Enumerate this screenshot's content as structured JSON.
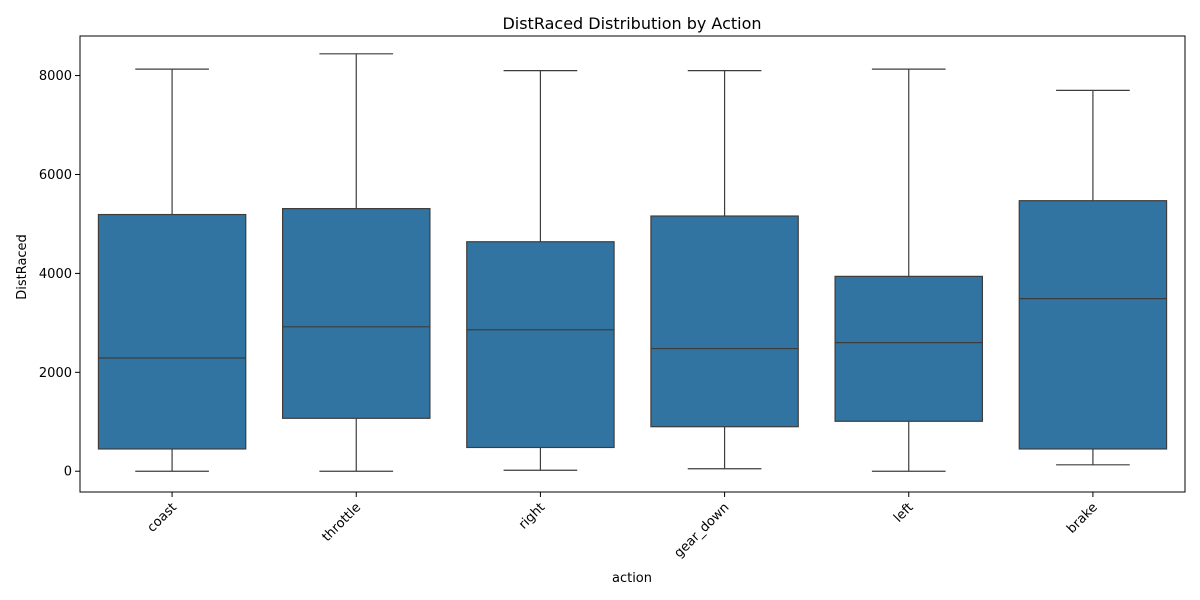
{
  "chart_data": {
    "type": "box",
    "title": "DistRaced Distribution by Action",
    "xlabel": "action",
    "ylabel": "DistRaced",
    "ylim": [
      -420,
      8800
    ],
    "yticks": [
      0,
      2000,
      4000,
      6000,
      8000
    ],
    "grid": false,
    "legend": "none",
    "box_color": "#3274a1",
    "line_color": "#3d3d3d",
    "categories": [
      "coast",
      "throttle",
      "right",
      "gear_down",
      "left",
      "brake"
    ],
    "boxes": [
      {
        "category": "coast",
        "whisker_low": 0,
        "q1": 450,
        "median": 2290,
        "q3": 5190,
        "whisker_high": 8130
      },
      {
        "category": "throttle",
        "whisker_low": 0,
        "q1": 1070,
        "median": 2920,
        "q3": 5310,
        "whisker_high": 8440
      },
      {
        "category": "right",
        "whisker_low": 20,
        "q1": 480,
        "median": 2860,
        "q3": 4640,
        "whisker_high": 8100
      },
      {
        "category": "gear_down",
        "whisker_low": 50,
        "q1": 900,
        "median": 2480,
        "q3": 5160,
        "whisker_high": 8100
      },
      {
        "category": "left",
        "whisker_low": 0,
        "q1": 1010,
        "median": 2600,
        "q3": 3940,
        "whisker_high": 8130
      },
      {
        "category": "brake",
        "whisker_low": 130,
        "q1": 450,
        "median": 3490,
        "q3": 5470,
        "whisker_high": 7700
      }
    ]
  }
}
